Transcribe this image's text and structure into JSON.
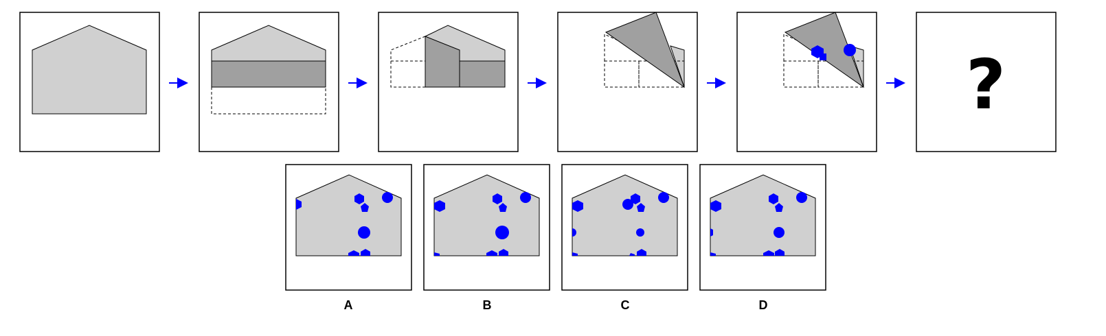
{
  "colors": {
    "paper": "#d0d0d0",
    "fold": "#a0a0a0",
    "hole": "#0000ff",
    "arrow": "#0000ff",
    "outline": "#000000"
  },
  "question": {
    "mark": "?"
  },
  "options": [
    {
      "label": "A"
    },
    {
      "label": "B"
    },
    {
      "label": "C"
    },
    {
      "label": "D"
    }
  ]
}
